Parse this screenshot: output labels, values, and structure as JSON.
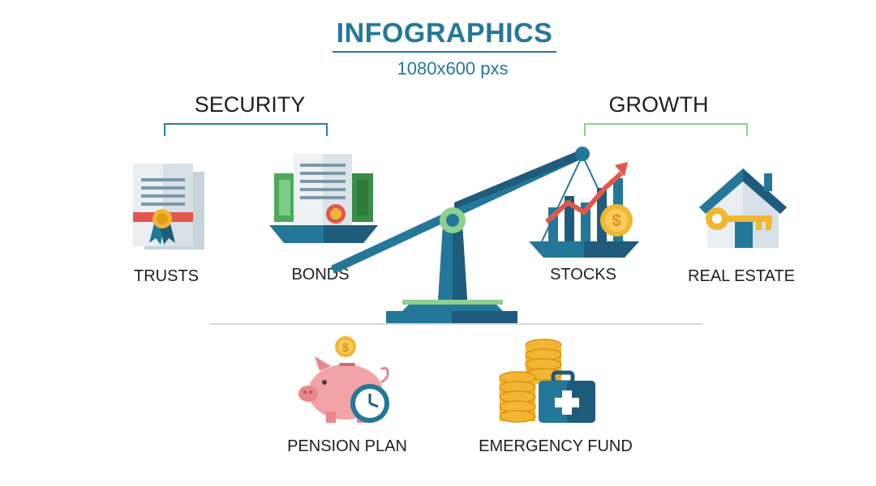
{
  "header": {
    "title": "INFOGRAPHICS",
    "subtitle": "1080x600 pxs"
  },
  "groups": {
    "security": "SECURITY",
    "growth": "GROWTH"
  },
  "items": {
    "trusts": "TRUSTS",
    "bonds": "BONDS",
    "stocks": "STOCKS",
    "real_estate": "REAL ESTATE",
    "pension_plan": "PENSION PLAN",
    "emergency_fund": "EMERGENCY FUND"
  },
  "icons": {
    "trusts": "certificate-icon",
    "bonds": "bond-document-icon",
    "scale": "balance-scale-icon",
    "stocks": "stock-chart-icon",
    "real_estate": "house-key-icon",
    "pension_plan": "piggy-bank-clock-icon",
    "emergency_fund": "coins-medkit-icon"
  },
  "colors": {
    "primary": "#23789a",
    "dark_blue": "#1f5b7b",
    "green_accent": "#8ed08f",
    "coin_gold": "#f2b632",
    "ribbon_red": "#e2574c",
    "piggy_pink": "#f1a3a6"
  }
}
